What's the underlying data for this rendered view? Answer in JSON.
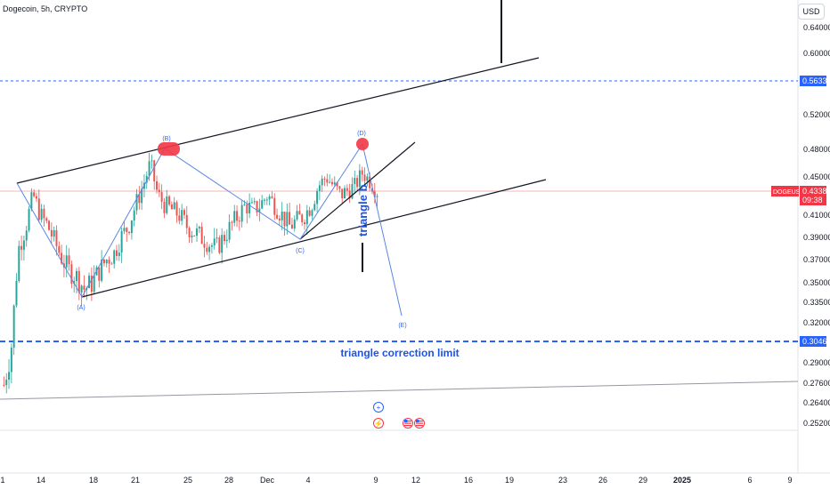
{
  "header": {
    "symbol_title": "Dogecoin, 5h, CRYPTO",
    "currency_button": "USD"
  },
  "colors": {
    "up": "#26a69a",
    "down": "#ef5350",
    "wave": "#2962ff",
    "channel": "#131722",
    "limit_line": "#2962ff",
    "price_badge": "#f23645",
    "level_badge": "#2962ff"
  },
  "price_axis": {
    "ticks": [
      "0.64000",
      "0.60000",
      "0.52000",
      "0.48000",
      "0.45000",
      "0.41000",
      "0.39000",
      "0.37000",
      "0.35000",
      "0.33500",
      "0.32000",
      "0.29000",
      "0.27600",
      "0.26400",
      "0.25200"
    ],
    "level_upper": "0.56333",
    "level_lower": "0.30460",
    "current_symbol": "DOGEUSD",
    "current_price": "0.43382",
    "countdown": "09:38"
  },
  "time_axis": {
    "ticks": [
      "1",
      "14",
      "18",
      "21",
      "25",
      "28",
      "Dec",
      "4",
      "9",
      "12",
      "16",
      "19",
      "23",
      "26",
      "29",
      "2025",
      "6",
      "9"
    ]
  },
  "annotations": {
    "wave_labels": [
      "(A)",
      "(B)",
      "(C)",
      "(D)",
      "(E)"
    ],
    "triangle_label": "triangle b",
    "limit_label": "triangle correction limit"
  },
  "event_icons": [
    "plus-icon",
    "flash-icon",
    "us-flag-icon",
    "us-flag-icon"
  ],
  "chart_data": {
    "type": "candlestick",
    "title": "Dogecoin, 5h, CRYPTO",
    "xlabel": "",
    "ylabel": "",
    "ylim": [
      0.245,
      0.66
    ],
    "x_ticks": [
      "1",
      "14",
      "18",
      "21",
      "25",
      "28",
      "Dec",
      "4",
      "9",
      "12",
      "16",
      "19",
      "23",
      "26",
      "29",
      "2025",
      "6",
      "9"
    ],
    "price_path": [
      0.275,
      0.3,
      0.38,
      0.4,
      0.43,
      0.41,
      0.4,
      0.385,
      0.37,
      0.36,
      0.355,
      0.345,
      0.35,
      0.36,
      0.37,
      0.375,
      0.39,
      0.4,
      0.42,
      0.44,
      0.465,
      0.43,
      0.42,
      0.415,
      0.41,
      0.4,
      0.395,
      0.39,
      0.385,
      0.38,
      0.39,
      0.4,
      0.41,
      0.42,
      0.415,
      0.42,
      0.43,
      0.42,
      0.41,
      0.4,
      0.405,
      0.41,
      0.42,
      0.44,
      0.45,
      0.44,
      0.43,
      0.435,
      0.44,
      0.455,
      0.445,
      0.434
    ],
    "current_price": 0.43382,
    "horizontal_levels": [
      {
        "price": 0.56333,
        "style": "dotted"
      },
      {
        "price": 0.3046,
        "style": "dashed",
        "label": "triangle correction limit"
      }
    ],
    "wave_points": [
      {
        "label": "(A)",
        "price": 0.34
      },
      {
        "label": "(B)",
        "price": 0.475
      },
      {
        "label": "(C)",
        "price": 0.387
      },
      {
        "label": "(D)",
        "price": 0.48
      },
      {
        "label": "(E)",
        "price": 0.322
      }
    ],
    "grid": false
  }
}
